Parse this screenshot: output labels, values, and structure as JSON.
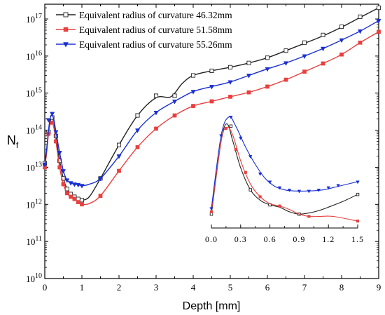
{
  "chart_data": {
    "type": "line",
    "title": "",
    "xlabel": "Depth [mm]",
    "ylabel_main": "N",
    "ylabel_sub": "f",
    "xlim": [
      0,
      9
    ],
    "ylim": [
      10000000000.0,
      2.5e+17
    ],
    "y_scale": "log",
    "grid": false,
    "legend_position": "top-left",
    "x_ticks": [
      "0",
      "1",
      "2",
      "3",
      "4",
      "5",
      "6",
      "7",
      "8",
      "9"
    ],
    "y_ticks": [
      {
        "base": "10",
        "exp": "10",
        "value": 10000000000.0
      },
      {
        "base": "10",
        "exp": "11",
        "value": 100000000000.0
      },
      {
        "base": "10",
        "exp": "12",
        "value": 1000000000000.0
      },
      {
        "base": "10",
        "exp": "13",
        "value": 10000000000000.0
      },
      {
        "base": "10",
        "exp": "14",
        "value": 100000000000000.0
      },
      {
        "base": "10",
        "exp": "15",
        "value": 1000000000000000.0
      },
      {
        "base": "10",
        "exp": "16",
        "value": 1e+16
      },
      {
        "base": "10",
        "exp": "17",
        "value": 1e+17
      }
    ],
    "series": [
      {
        "name": "Equivalent radius of curvature 46.32mm",
        "color": "#222222",
        "marker": "open-square",
        "curve": [
          [
            0,
            13000000000000.0
          ],
          [
            0.05,
            30000000000000.0
          ],
          [
            0.1,
            90000000000000.0
          ],
          [
            0.15,
            180000000000000.0
          ],
          [
            0.2,
            220000000000000.0
          ],
          [
            0.25,
            150000000000000.0
          ],
          [
            0.3,
            70000000000000.0
          ],
          [
            0.4,
            15000000000000.0
          ],
          [
            0.5,
            5000000000000.0
          ],
          [
            0.6,
            2600000000000.0
          ],
          [
            0.7,
            1900000000000.0
          ],
          [
            0.8,
            1600000000000.0
          ],
          [
            0.9,
            1400000000000.0
          ],
          [
            1.0,
            1300000000000.0
          ],
          [
            1.2,
            1600000000000.0
          ],
          [
            1.5,
            5000000000000.0
          ],
          [
            2.0,
            40000000000000.0
          ],
          [
            2.5,
            250000000000000.0
          ],
          [
            3.0,
            750000000000000.0
          ],
          [
            3.4,
            800000000000000.0
          ],
          [
            3.7,
            1800000000000000.0
          ],
          [
            4.0,
            3000000000000000.0
          ],
          [
            4.5,
            4000000000000000.0
          ],
          [
            5.0,
            5000000000000000.0
          ],
          [
            5.5,
            6500000000000000.0
          ],
          [
            6.0,
            9000000000000000.0
          ],
          [
            6.5,
            1.4e+16
          ],
          [
            7.0,
            2.2e+16
          ],
          [
            7.5,
            3.5e+16
          ],
          [
            8.0,
            6e+16
          ],
          [
            8.5,
            1.1e+17
          ],
          [
            9.0,
            2e+17
          ]
        ],
        "points": [
          [
            0,
            13000000000000.0
          ],
          [
            0.1,
            90000000000000.0
          ],
          [
            0.2,
            220000000000000.0
          ],
          [
            0.3,
            70000000000000.0
          ],
          [
            0.4,
            15000000000000.0
          ],
          [
            0.5,
            5000000000000.0
          ],
          [
            0.6,
            2600000000000.0
          ],
          [
            0.7,
            1900000000000.0
          ],
          [
            0.8,
            1600000000000.0
          ],
          [
            0.9,
            1400000000000.0
          ],
          [
            1.0,
            1300000000000.0
          ],
          [
            1.5,
            5000000000000.0
          ],
          [
            2.0,
            40000000000000.0
          ],
          [
            2.5,
            250000000000000.0
          ],
          [
            3.0,
            850000000000000.0
          ],
          [
            3.5,
            850000000000000.0
          ],
          [
            4.0,
            3000000000000000.0
          ],
          [
            4.5,
            4000000000000000.0
          ],
          [
            5.0,
            5000000000000000.0
          ],
          [
            5.5,
            6500000000000000.0
          ],
          [
            6.0,
            9000000000000000.0
          ],
          [
            6.5,
            1.4e+16
          ],
          [
            7.0,
            2.3e+16
          ],
          [
            7.5,
            3.7e+16
          ],
          [
            8.0,
            6.2e+16
          ],
          [
            8.5,
            1.15e+17
          ],
          [
            9.0,
            2e+17
          ]
        ]
      },
      {
        "name": "Equivalent radius of curvature 51.58mm",
        "color": "#e8403e",
        "marker": "filled-square",
        "curve": [
          [
            0,
            10000000000000.0
          ],
          [
            0.05,
            25000000000000.0
          ],
          [
            0.1,
            80000000000000.0
          ],
          [
            0.15,
            150000000000000.0
          ],
          [
            0.2,
            160000000000000.0
          ],
          [
            0.25,
            110000000000000.0
          ],
          [
            0.3,
            50000000000000.0
          ],
          [
            0.4,
            10000000000000.0
          ],
          [
            0.5,
            3500000000000.0
          ],
          [
            0.6,
            2000000000000.0
          ],
          [
            0.7,
            1600000000000.0
          ],
          [
            0.8,
            1400000000000.0
          ],
          [
            0.9,
            1150000000000.0
          ],
          [
            1.0,
            1000000000000.0
          ],
          [
            1.2,
            1050000000000.0
          ],
          [
            1.5,
            1700000000000.0
          ],
          [
            2.0,
            8000000000000.0
          ],
          [
            2.5,
            35000000000000.0
          ],
          [
            3.0,
            110000000000000.0
          ],
          [
            3.5,
            250000000000000.0
          ],
          [
            4.0,
            450000000000000.0
          ],
          [
            4.5,
            600000000000000.0
          ],
          [
            5.0,
            800000000000000.0
          ],
          [
            5.5,
            1050000000000000.0
          ],
          [
            6.0,
            1500000000000000.0
          ],
          [
            6.5,
            2300000000000000.0
          ],
          [
            7.0,
            3800000000000000.0
          ],
          [
            7.5,
            6300000000000000.0
          ],
          [
            8.0,
            1.1e+16
          ],
          [
            8.5,
            2.3e+16
          ],
          [
            9.0,
            4.5e+16
          ]
        ],
        "points": [
          [
            0,
            10000000000000.0
          ],
          [
            0.1,
            80000000000000.0
          ],
          [
            0.2,
            160000000000000.0
          ],
          [
            0.3,
            50000000000000.0
          ],
          [
            0.4,
            10000000000000.0
          ],
          [
            0.5,
            3500000000000.0
          ],
          [
            0.6,
            2000000000000.0
          ],
          [
            0.7,
            1600000000000.0
          ],
          [
            0.8,
            1400000000000.0
          ],
          [
            0.9,
            1150000000000.0
          ],
          [
            1.0,
            1000000000000.0
          ],
          [
            1.5,
            1700000000000.0
          ],
          [
            2.0,
            8000000000000.0
          ],
          [
            2.5,
            35000000000000.0
          ],
          [
            3.0,
            110000000000000.0
          ],
          [
            3.5,
            250000000000000.0
          ],
          [
            4.0,
            450000000000000.0
          ],
          [
            4.5,
            600000000000000.0
          ],
          [
            5.0,
            800000000000000.0
          ],
          [
            5.5,
            1050000000000000.0
          ],
          [
            6.0,
            1500000000000000.0
          ],
          [
            6.5,
            2300000000000000.0
          ],
          [
            7.0,
            3800000000000000.0
          ],
          [
            7.5,
            6300000000000000.0
          ],
          [
            8.0,
            1.1e+16
          ],
          [
            8.5,
            2.3e+16
          ],
          [
            9.0,
            4.5e+16
          ]
        ]
      },
      {
        "name": "Equivalent radius of curvature 55.26mm",
        "color": "#1a2fd0",
        "marker": "filled-triangle-down",
        "curve": [
          [
            0,
            12000000000000.0
          ],
          [
            0.05,
            30000000000000.0
          ],
          [
            0.1,
            100000000000000.0
          ],
          [
            0.15,
            220000000000000.0
          ],
          [
            0.2,
            250000000000000.0
          ],
          [
            0.25,
            180000000000000.0
          ],
          [
            0.3,
            90000000000000.0
          ],
          [
            0.4,
            25000000000000.0
          ],
          [
            0.5,
            8000000000000.0
          ],
          [
            0.6,
            4500000000000.0
          ],
          [
            0.7,
            3800000000000.0
          ],
          [
            0.8,
            3500000000000.0
          ],
          [
            0.9,
            3400000000000.0
          ],
          [
            1.0,
            3200000000000.0
          ],
          [
            1.2,
            3500000000000.0
          ],
          [
            1.5,
            5000000000000.0
          ],
          [
            2.0,
            20000000000000.0
          ],
          [
            2.5,
            100000000000000.0
          ],
          [
            3.0,
            300000000000000.0
          ],
          [
            3.5,
            600000000000000.0
          ],
          [
            4.0,
            1100000000000000.0
          ],
          [
            4.5,
            1500000000000000.0
          ],
          [
            5.0,
            2000000000000000.0
          ],
          [
            5.5,
            3000000000000000.0
          ],
          [
            6.0,
            4500000000000000.0
          ],
          [
            6.5,
            6500000000000000.0
          ],
          [
            7.0,
            1e+16
          ],
          [
            7.5,
            1.6e+16
          ],
          [
            8.0,
            2.7e+16
          ],
          [
            8.5,
            4.7e+16
          ],
          [
            9.0,
            9e+16
          ]
        ],
        "points": [
          [
            0,
            12000000000000.0
          ],
          [
            0.1,
            190000000000000.0
          ],
          [
            0.2,
            280000000000000.0
          ],
          [
            0.3,
            90000000000000.0
          ],
          [
            0.4,
            25000000000000.0
          ],
          [
            0.5,
            8000000000000.0
          ],
          [
            0.6,
            4500000000000.0
          ],
          [
            0.7,
            3800000000000.0
          ],
          [
            0.8,
            3500000000000.0
          ],
          [
            0.9,
            3400000000000.0
          ],
          [
            1.0,
            3200000000000.0
          ],
          [
            1.5,
            5000000000000.0
          ],
          [
            2.0,
            20000000000000.0
          ],
          [
            2.5,
            100000000000000.0
          ],
          [
            3.0,
            300000000000000.0
          ],
          [
            3.5,
            600000000000000.0
          ],
          [
            4.0,
            1100000000000000.0
          ],
          [
            4.5,
            1500000000000000.0
          ],
          [
            5.0,
            2000000000000000.0
          ],
          [
            5.5,
            3000000000000000.0
          ],
          [
            6.0,
            4500000000000000.0
          ],
          [
            6.5,
            6500000000000000.0
          ],
          [
            7.0,
            1e+16
          ],
          [
            7.5,
            1.6e+16
          ],
          [
            8.0,
            2.7e+16
          ],
          [
            8.5,
            4.7e+16
          ],
          [
            9.0,
            9e+16
          ]
        ]
      }
    ],
    "inset": {
      "xlim": [
        0,
        1.5
      ],
      "x_ticks": [
        "0.0",
        "0.3",
        "0.6",
        "0.9",
        "1.2",
        "1.5"
      ],
      "series": [
        {
          "name": "Equivalent radius of curvature 46.32mm",
          "curve": [
            [
              0,
              0.12
            ],
            [
              0.1,
              0.75
            ],
            [
              0.16,
              0.9
            ],
            [
              0.22,
              0.75
            ],
            [
              0.3,
              0.52
            ],
            [
              0.4,
              0.33
            ],
            [
              0.5,
              0.24
            ],
            [
              0.6,
              0.2
            ],
            [
              0.7,
              0.18
            ],
            [
              0.8,
              0.14
            ],
            [
              0.9,
              0.12
            ],
            [
              1.0,
              0.13
            ],
            [
              1.1,
              0.15
            ],
            [
              1.2,
              0.18
            ],
            [
              1.35,
              0.23
            ],
            [
              1.5,
              0.29
            ]
          ],
          "points": [
            [
              0,
              0.12
            ],
            [
              0.2,
              0.88
            ],
            [
              0.4,
              0.33
            ],
            [
              0.6,
              0.2
            ],
            [
              0.9,
              0.12
            ],
            [
              1.5,
              0.29
            ]
          ]
        },
        {
          "name": "Equivalent radius of curvature 51.58mm",
          "curve": [
            [
              0,
              0.14
            ],
            [
              0.1,
              0.75
            ],
            [
              0.16,
              0.87
            ],
            [
              0.22,
              0.8
            ],
            [
              0.3,
              0.58
            ],
            [
              0.4,
              0.38
            ],
            [
              0.5,
              0.27
            ],
            [
              0.6,
              0.21
            ],
            [
              0.7,
              0.19
            ],
            [
              0.8,
              0.16
            ],
            [
              0.9,
              0.12
            ],
            [
              1.0,
              0.1
            ],
            [
              1.1,
              0.1
            ],
            [
              1.25,
              0.1
            ],
            [
              1.5,
              0.06
            ]
          ],
          "points": [
            [
              0,
              0.14
            ],
            [
              0.15,
              0.86
            ],
            [
              0.25,
              0.68
            ],
            [
              0.35,
              0.48
            ],
            [
              0.5,
              0.27
            ],
            [
              0.7,
              0.19
            ],
            [
              1.0,
              0.1
            ],
            [
              1.5,
              0.06
            ]
          ]
        },
        {
          "name": "Equivalent radius of curvature 55.26mm",
          "curve": [
            [
              0,
              0.17
            ],
            [
              0.1,
              0.8
            ],
            [
              0.18,
              0.96
            ],
            [
              0.25,
              0.88
            ],
            [
              0.35,
              0.7
            ],
            [
              0.45,
              0.55
            ],
            [
              0.55,
              0.43
            ],
            [
              0.65,
              0.36
            ],
            [
              0.75,
              0.33
            ],
            [
              0.85,
              0.32
            ],
            [
              1.0,
              0.32
            ],
            [
              1.15,
              0.33
            ],
            [
              1.3,
              0.36
            ],
            [
              1.5,
              0.4
            ]
          ],
          "points": [
            [
              0,
              0.17
            ],
            [
              0.1,
              0.8
            ],
            [
              0.2,
              0.96
            ],
            [
              0.3,
              0.78
            ],
            [
              0.4,
              0.62
            ],
            [
              0.5,
              0.47
            ],
            [
              0.6,
              0.4
            ],
            [
              0.7,
              0.35
            ],
            [
              0.8,
              0.33
            ],
            [
              0.9,
              0.32
            ],
            [
              1.0,
              0.32
            ],
            [
              1.1,
              0.33
            ],
            [
              1.2,
              0.35
            ],
            [
              1.3,
              0.37
            ],
            [
              1.5,
              0.4
            ]
          ]
        }
      ]
    }
  }
}
